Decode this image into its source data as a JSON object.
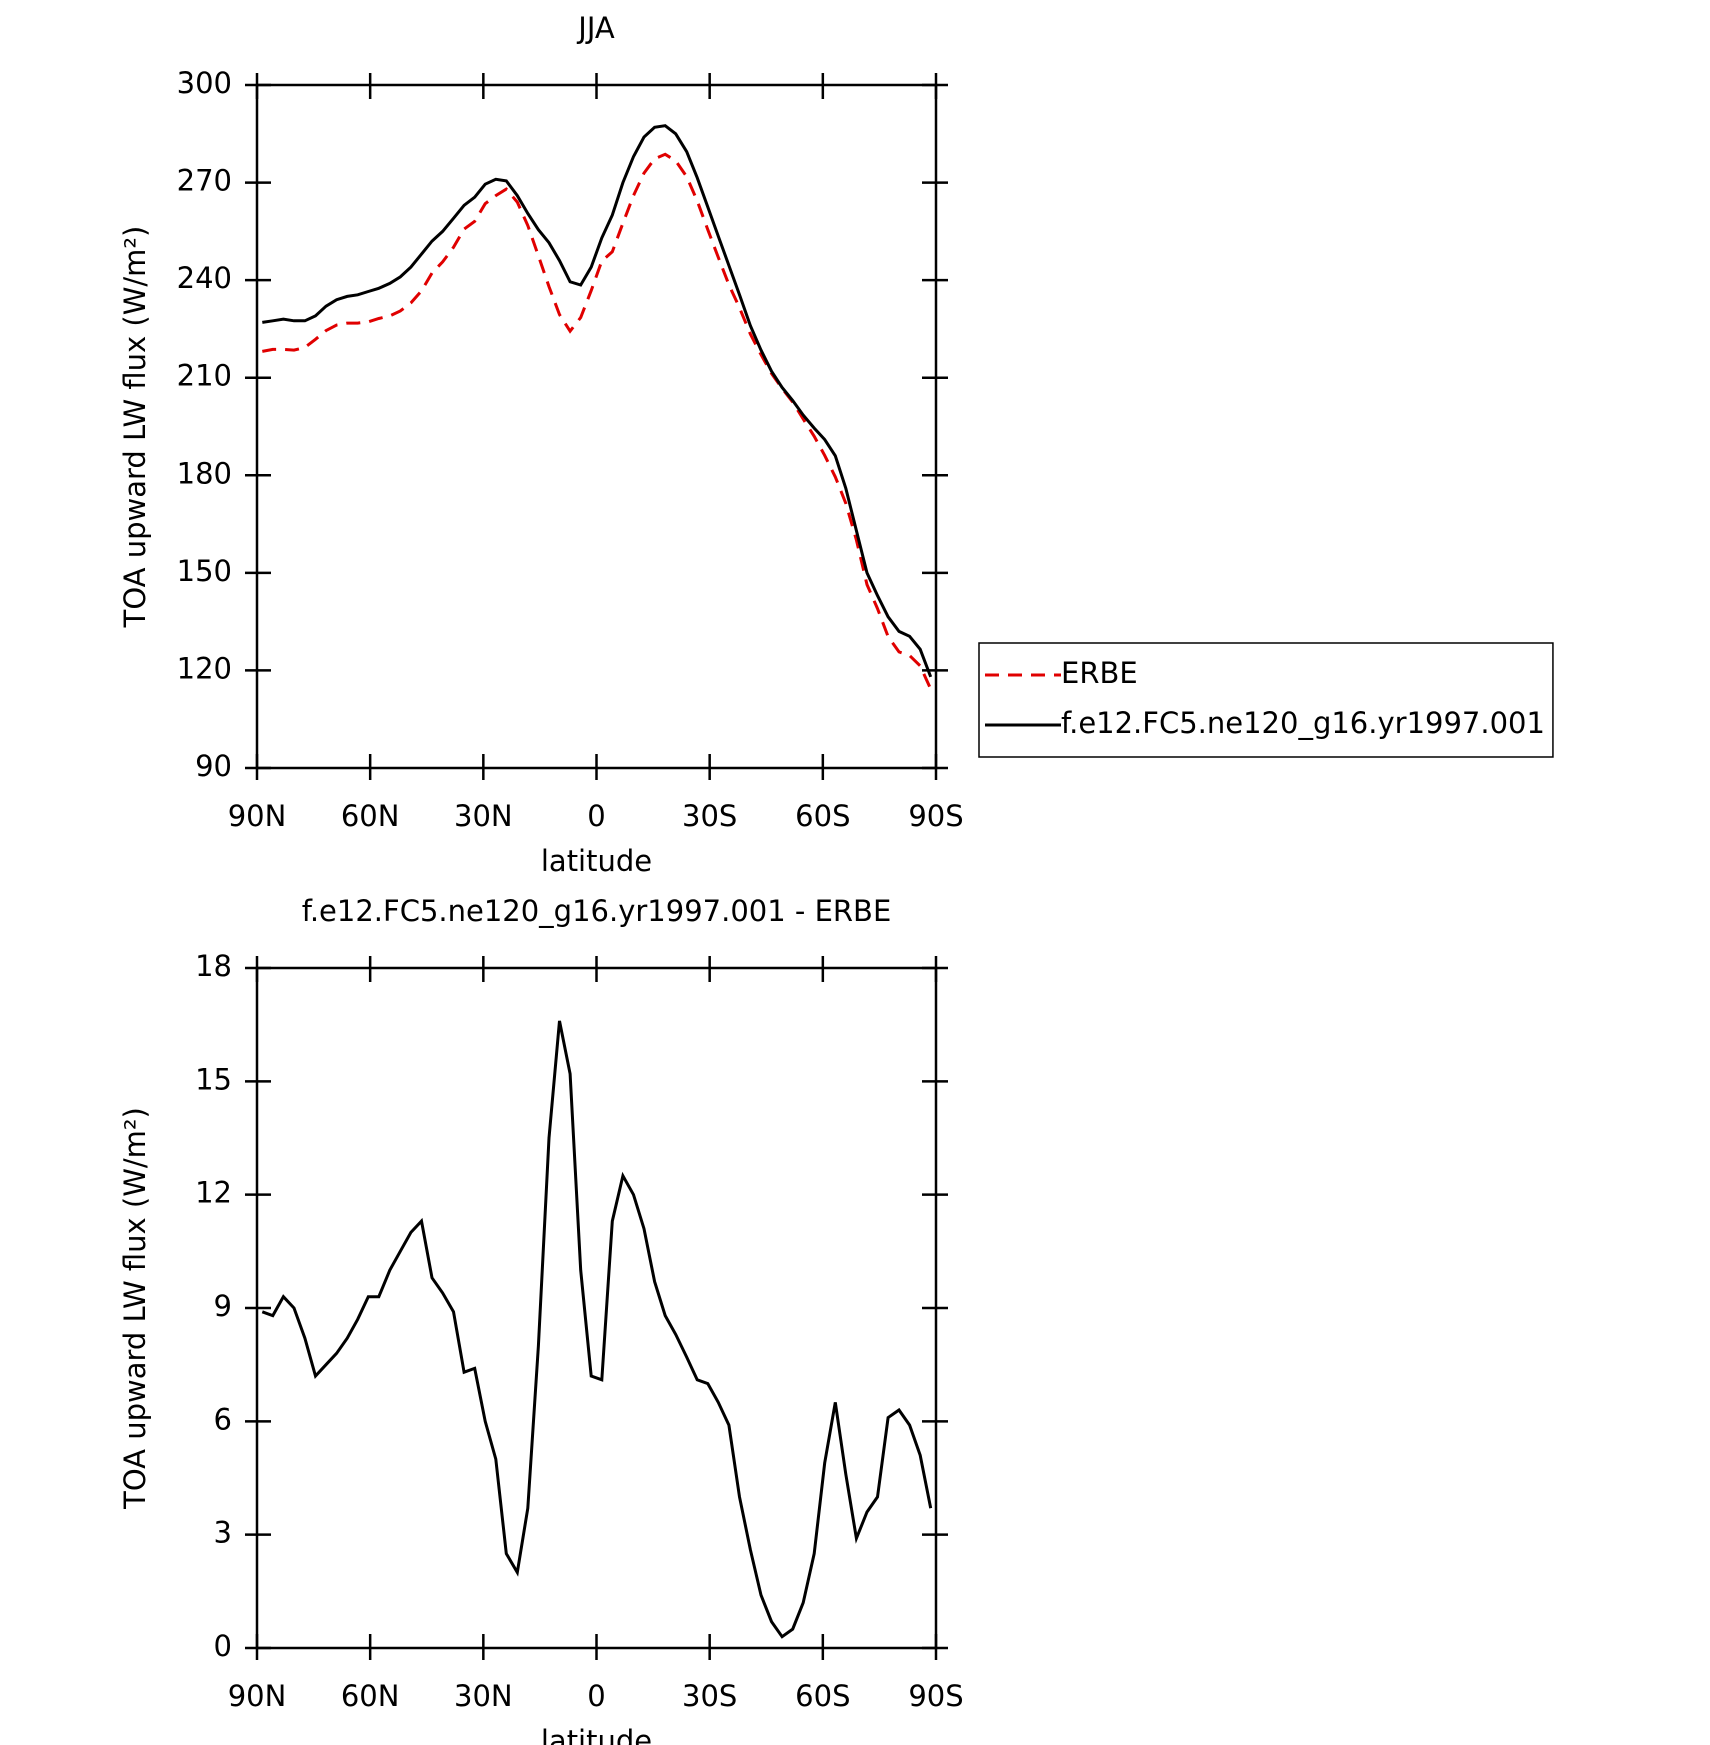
{
  "chart_data": [
    {
      "type": "line",
      "title": "JJA",
      "xlabel": "latitude",
      "ylabel": "TOA upward LW flux (W/m²)",
      "x": [
        88.6,
        85.8,
        83.0,
        80.2,
        77.3,
        74.5,
        71.7,
        68.9,
        66.1,
        63.3,
        60.5,
        57.7,
        54.8,
        52.0,
        49.2,
        46.4,
        43.6,
        40.8,
        37.9,
        35.1,
        32.3,
        29.5,
        26.7,
        23.9,
        21.0,
        18.2,
        15.4,
        12.6,
        9.8,
        7.0,
        4.2,
        1.4,
        -1.4,
        -4.2,
        -7.0,
        -9.8,
        -12.6,
        -15.4,
        -18.2,
        -21.0,
        -23.9,
        -26.7,
        -29.5,
        -32.3,
        -35.1,
        -37.9,
        -40.8,
        -43.6,
        -46.4,
        -49.2,
        -52.0,
        -54.8,
        -57.7,
        -60.5,
        -63.3,
        -66.1,
        -68.9,
        -71.7,
        -74.5,
        -77.3,
        -80.2,
        -83.0,
        -85.8,
        -88.6
      ],
      "series": [
        {
          "name": "ERBE",
          "color": "#e00000",
          "dashed": true,
          "values": [
            218.1,
            218.7,
            218.7,
            218.5,
            219.3,
            221.8,
            224.5,
            226.2,
            226.8,
            226.8,
            227.2,
            228.2,
            229,
            230.5,
            233,
            236.7,
            242.2,
            245.6,
            250.1,
            255.7,
            258.1,
            263.5,
            266,
            268,
            264,
            256.8,
            247.5,
            238,
            229.4,
            224.3,
            228.5,
            236.8,
            245.9,
            248.7,
            257.5,
            266,
            272.9,
            277.3,
            278.7,
            276.7,
            271.8,
            264.4,
            255.5,
            247,
            238.6,
            231.5,
            223.4,
            217.1,
            211.3,
            206.7,
            202.5,
            197.3,
            192,
            186.1,
            179.5,
            171.4,
            160.1,
            146.4,
            139,
            130.4,
            125.7,
            124.6,
            121.4,
            114.3
          ]
        },
        {
          "name": "f.e12.FC5.ne120_g16.yr1997.001",
          "color": "#000000",
          "dashed": false,
          "values": [
            227,
            227.5,
            228,
            227.5,
            227.5,
            229,
            232,
            234,
            235,
            235.5,
            236.5,
            237.5,
            239,
            241,
            244,
            248,
            252,
            255,
            259,
            263,
            265.5,
            269.5,
            271,
            270.5,
            266,
            260.5,
            255.5,
            251.5,
            246,
            239.5,
            238.5,
            244,
            253,
            260,
            270,
            278,
            284,
            287,
            287.5,
            285,
            279.5,
            271.5,
            262.5,
            253.5,
            244.5,
            235.5,
            226,
            218.5,
            212,
            207,
            203,
            198.5,
            194.5,
            191,
            186,
            176,
            163,
            150,
            143,
            136.5,
            132,
            130.5,
            126.5,
            118
          ]
        }
      ],
      "xlim": [
        90,
        -90
      ],
      "xticks": [
        {
          "value": 90,
          "label": "90N"
        },
        {
          "value": 60,
          "label": "60N"
        },
        {
          "value": 30,
          "label": "30N"
        },
        0,
        {
          "value": -30,
          "label": "30S"
        },
        {
          "value": -60,
          "label": "60S"
        },
        {
          "value": -90,
          "label": "90S"
        }
      ],
      "ylim": [
        90,
        300
      ],
      "yticks": [
        90,
        120,
        150,
        180,
        210,
        240,
        270,
        300
      ],
      "legend": "outside-right"
    },
    {
      "type": "line",
      "title": "f.e12.FC5.ne120_g16.yr1997.001 - ERBE",
      "xlabel": "latitude",
      "ylabel": "TOA upward LW flux (W/m²)",
      "x": [
        88.6,
        85.8,
        83.0,
        80.2,
        77.3,
        74.5,
        71.7,
        68.9,
        66.1,
        63.3,
        60.5,
        57.7,
        54.8,
        52.0,
        49.2,
        46.4,
        43.6,
        40.8,
        37.9,
        35.1,
        32.3,
        29.5,
        26.7,
        23.9,
        21.0,
        18.2,
        15.4,
        12.6,
        9.8,
        7.0,
        4.2,
        1.4,
        -1.4,
        -4.2,
        -7.0,
        -9.8,
        -12.6,
        -15.4,
        -18.2,
        -21.0,
        -23.9,
        -26.7,
        -29.5,
        -32.3,
        -35.1,
        -37.9,
        -40.8,
        -43.6,
        -46.4,
        -49.2,
        -52.0,
        -54.8,
        -57.7,
        -60.5,
        -63.3,
        -66.1,
        -68.9,
        -71.7,
        -74.5,
        -77.3,
        -80.2,
        -83.0,
        -85.8,
        -88.6
      ],
      "series": [
        {
          "color": "#000000",
          "dashed": false,
          "values": [
            8.9,
            8.8,
            9.3,
            9.0,
            8.2,
            7.2,
            7.5,
            7.8,
            8.2,
            8.7,
            9.3,
            9.3,
            10.0,
            10.5,
            11.0,
            11.3,
            9.8,
            9.4,
            8.9,
            7.3,
            7.4,
            6.0,
            5.0,
            2.5,
            2.0,
            3.7,
            8.0,
            13.5,
            16.6,
            15.2,
            10.0,
            7.2,
            7.1,
            11.3,
            12.5,
            12.0,
            11.1,
            9.7,
            8.8,
            8.3,
            7.7,
            7.1,
            7.0,
            6.5,
            5.9,
            4.0,
            2.6,
            1.4,
            0.7,
            0.3,
            0.5,
            1.2,
            2.5,
            4.9,
            6.5,
            4.6,
            2.9,
            3.6,
            4.0,
            6.1,
            6.3,
            5.9,
            5.1,
            3.7
          ]
        }
      ],
      "xlim": [
        90,
        -90
      ],
      "xticks": [
        {
          "value": 90,
          "label": "90N"
        },
        {
          "value": 60,
          "label": "60N"
        },
        {
          "value": 30,
          "label": "30N"
        },
        0,
        {
          "value": -30,
          "label": "30S"
        },
        {
          "value": -60,
          "label": "60S"
        },
        {
          "value": -90,
          "label": "90S"
        }
      ],
      "ylim": [
        0,
        18
      ],
      "yticks": [
        0,
        3,
        6,
        9,
        12,
        15,
        18
      ]
    }
  ]
}
